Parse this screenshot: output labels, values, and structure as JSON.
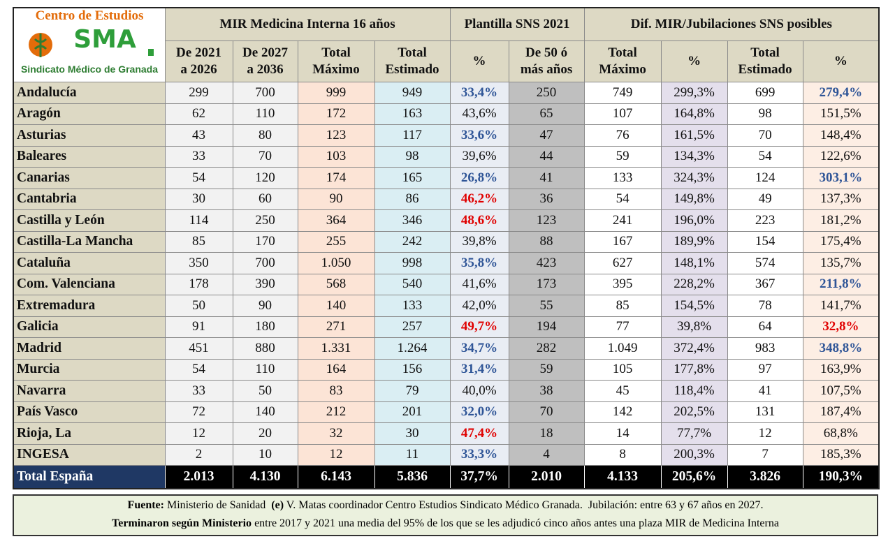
{
  "header": {
    "logo": {
      "top": "Centro de Estudios",
      "mark": "SMA",
      "bottom": "Sindicato Médico de Granada"
    },
    "groups": [
      "MIR Medicina Interna 16 años",
      "Plantilla SNS 2021",
      "Dif. MIR/Jubilaciones SNS posibles"
    ],
    "columns": [
      "De 2021\na 2026",
      "De 2027\na 2036",
      "Total\nMáximo",
      "Total\nEstimado",
      "%",
      "De 50 ó\nmás años",
      "Total\nMáximo",
      "%",
      "Total\nEstimado",
      "%"
    ]
  },
  "table": {
    "rows": [
      [
        "Andalucía",
        "299",
        "700",
        "999",
        "949",
        "33,4%",
        "250",
        "749",
        "299,3%",
        "699",
        "279,4%"
      ],
      [
        "Aragón",
        "62",
        "110",
        "172",
        "163",
        "43,6%",
        "65",
        "107",
        "164,8%",
        "98",
        "151,5%"
      ],
      [
        "Asturias",
        "43",
        "80",
        "123",
        "117",
        "33,6%",
        "47",
        "76",
        "161,5%",
        "70",
        "148,4%"
      ],
      [
        "Baleares",
        "33",
        "70",
        "103",
        "98",
        "39,6%",
        "44",
        "59",
        "134,3%",
        "54",
        "122,6%"
      ],
      [
        "Canarias",
        "54",
        "120",
        "174",
        "165",
        "26,8%",
        "41",
        "133",
        "324,3%",
        "124",
        "303,1%"
      ],
      [
        "Cantabria",
        "30",
        "60",
        "90",
        "86",
        "46,2%",
        "36",
        "54",
        "149,8%",
        "49",
        "137,3%"
      ],
      [
        "Castilla y León",
        "114",
        "250",
        "364",
        "346",
        "48,6%",
        "123",
        "241",
        "196,0%",
        "223",
        "181,2%"
      ],
      [
        "Castilla-La Mancha",
        "85",
        "170",
        "255",
        "242",
        "39,8%",
        "88",
        "167",
        "189,9%",
        "154",
        "175,4%"
      ],
      [
        "Cataluña",
        "350",
        "700",
        "1.050",
        "998",
        "35,8%",
        "423",
        "627",
        "148,1%",
        "574",
        "135,7%"
      ],
      [
        "Com. Valenciana",
        "178",
        "390",
        "568",
        "540",
        "41,6%",
        "173",
        "395",
        "228,2%",
        "367",
        "211,8%"
      ],
      [
        "Extremadura",
        "50",
        "90",
        "140",
        "133",
        "42,0%",
        "55",
        "85",
        "154,5%",
        "78",
        "141,7%"
      ],
      [
        "Galicia",
        "91",
        "180",
        "271",
        "257",
        "49,7%",
        "194",
        "77",
        "39,8%",
        "64",
        "32,8%"
      ],
      [
        "Madrid",
        "451",
        "880",
        "1.331",
        "1.264",
        "34,7%",
        "282",
        "1.049",
        "372,4%",
        "983",
        "348,8%"
      ],
      [
        "Murcia",
        "54",
        "110",
        "164",
        "156",
        "31,4%",
        "59",
        "105",
        "177,8%",
        "97",
        "163,9%"
      ],
      [
        "Navarra",
        "33",
        "50",
        "83",
        "79",
        "40,0%",
        "38",
        "45",
        "118,4%",
        "41",
        "107,5%"
      ],
      [
        "País Vasco",
        "72",
        "140",
        "212",
        "201",
        "32,0%",
        "70",
        "142",
        "202,5%",
        "131",
        "187,4%"
      ],
      [
        "Rioja, La",
        "12",
        "20",
        "32",
        "30",
        "47,4%",
        "18",
        "14",
        "77,7%",
        "12",
        "68,8%"
      ],
      [
        "INGESA",
        "2",
        "10",
        "12",
        "11",
        "33,3%",
        "4",
        "8",
        "200,3%",
        "7",
        "185,3%"
      ]
    ],
    "total": [
      "Total España",
      "2.013",
      "4.130",
      "6.143",
      "5.836",
      "37,7%",
      "2.010",
      "4.133",
      "205,6%",
      "3.826",
      "190,3%"
    ]
  },
  "footer": {
    "lines": [
      [
        "Fuente:",
        " Ministerio de Sanidad  ",
        "(e)",
        " V. Matas coordinador Centro Estudios Sindicato Médico Granada.  Jubilación: entre 63 y 67 años en 2027."
      ],
      [
        "Terminaron según Ministerio",
        " entre 2017 y 2021 una media del 95% de los que se les adjudicó cinco años antes una plaza MIR de Medicina Interna"
      ]
    ]
  }
}
